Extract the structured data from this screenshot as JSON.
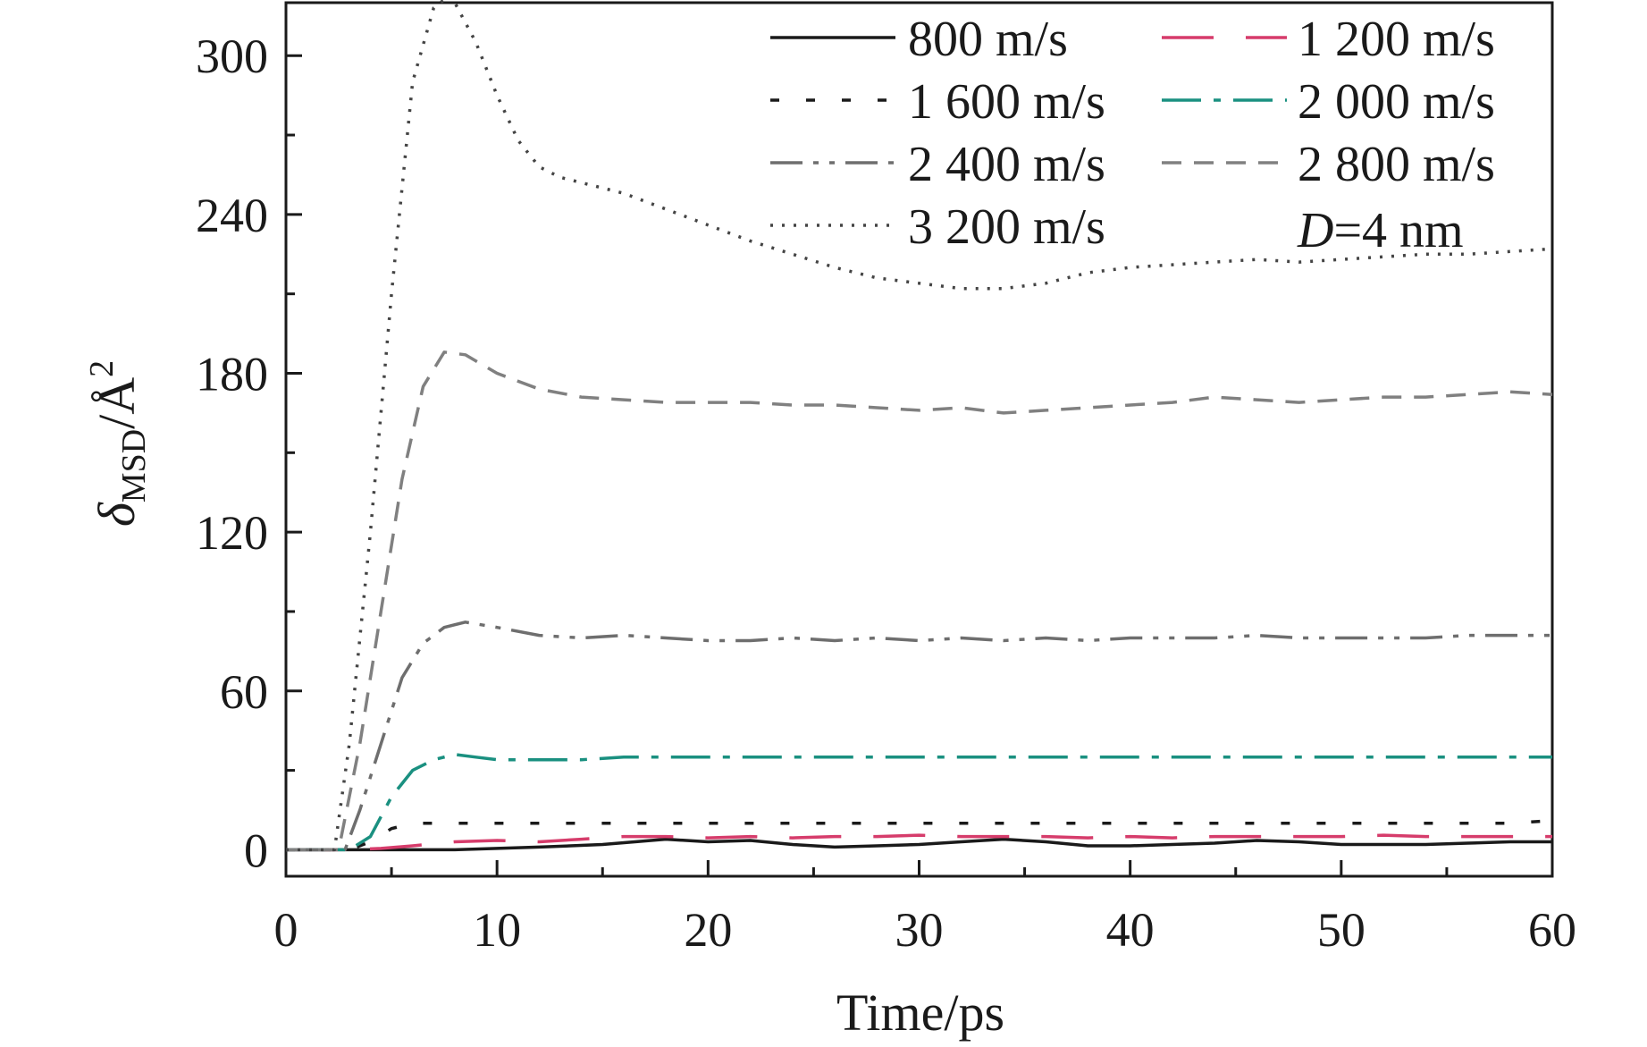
{
  "chart_data": {
    "type": "line",
    "xlabel": "Time/ps",
    "ylabel": {
      "main": "δ",
      "sub": "MSD",
      "unit": "/Å",
      "sup": "2"
    },
    "xlim": [
      0,
      60
    ],
    "ylim": [
      -10,
      320
    ],
    "xticks": [
      0,
      10,
      20,
      30,
      40,
      50,
      60
    ],
    "yticks": [
      0,
      60,
      120,
      180,
      240,
      300
    ],
    "grid": false,
    "legend_position": "top-right",
    "annotation": {
      "italic": "D",
      "rest": "=4 nm"
    },
    "series": [
      {
        "name": "800 m/s",
        "color": "#1a1a1a",
        "dash": "solid",
        "points": [
          [
            0,
            0
          ],
          [
            5,
            0
          ],
          [
            8,
            0
          ],
          [
            10,
            0.5
          ],
          [
            12,
            1
          ],
          [
            15,
            2
          ],
          [
            18,
            4
          ],
          [
            20,
            3
          ],
          [
            22,
            3.5
          ],
          [
            24,
            2
          ],
          [
            26,
            1
          ],
          [
            28,
            1.5
          ],
          [
            30,
            2
          ],
          [
            32,
            3
          ],
          [
            34,
            4
          ],
          [
            36,
            3
          ],
          [
            38,
            1.5
          ],
          [
            40,
            1.5
          ],
          [
            42,
            2
          ],
          [
            44,
            2.5
          ],
          [
            46,
            3.5
          ],
          [
            48,
            3
          ],
          [
            50,
            2
          ],
          [
            52,
            2
          ],
          [
            54,
            2
          ],
          [
            56,
            2.5
          ],
          [
            58,
            3
          ],
          [
            60,
            3
          ]
        ]
      },
      {
        "name": "1 200 m/s",
        "color": "#d63c6b",
        "dash": "long-dash",
        "points": [
          [
            0,
            0
          ],
          [
            3,
            0
          ],
          [
            4.5,
            0.5
          ],
          [
            6,
            1.5
          ],
          [
            8,
            3
          ],
          [
            10,
            3.5
          ],
          [
            12,
            3
          ],
          [
            14,
            4
          ],
          [
            16,
            5
          ],
          [
            18,
            5
          ],
          [
            20,
            4.5
          ],
          [
            22,
            5
          ],
          [
            24,
            4.5
          ],
          [
            26,
            5
          ],
          [
            28,
            5
          ],
          [
            30,
            5.5
          ],
          [
            32,
            5
          ],
          [
            34,
            5
          ],
          [
            36,
            5
          ],
          [
            38,
            4.5
          ],
          [
            40,
            5
          ],
          [
            42,
            4.5
          ],
          [
            44,
            5
          ],
          [
            46,
            5
          ],
          [
            48,
            5
          ],
          [
            50,
            5
          ],
          [
            52,
            5.5
          ],
          [
            54,
            5
          ],
          [
            56,
            5
          ],
          [
            58,
            5
          ],
          [
            60,
            5
          ]
        ]
      },
      {
        "name": "1 600 m/s",
        "color": "#1a1a1a",
        "dash": "short-dash",
        "points": [
          [
            0,
            0
          ],
          [
            3,
            0
          ],
          [
            4,
            3
          ],
          [
            5,
            8
          ],
          [
            6,
            10
          ],
          [
            8,
            10
          ],
          [
            10,
            10
          ],
          [
            15,
            10
          ],
          [
            20,
            10
          ],
          [
            25,
            10
          ],
          [
            30,
            10
          ],
          [
            35,
            10
          ],
          [
            40,
            10
          ],
          [
            45,
            10
          ],
          [
            50,
            10
          ],
          [
            55,
            10
          ],
          [
            58,
            10
          ],
          [
            60,
            11
          ]
        ]
      },
      {
        "name": "2 000 m/s",
        "color": "#1a9080",
        "dash": "dash-dot",
        "points": [
          [
            0,
            0
          ],
          [
            3,
            0
          ],
          [
            4,
            5
          ],
          [
            5,
            20
          ],
          [
            6,
            30
          ],
          [
            7,
            34
          ],
          [
            8,
            36
          ],
          [
            9,
            35
          ],
          [
            10,
            34
          ],
          [
            12,
            34
          ],
          [
            14,
            34
          ],
          [
            16,
            35
          ],
          [
            20,
            35
          ],
          [
            25,
            35
          ],
          [
            30,
            35
          ],
          [
            35,
            35
          ],
          [
            40,
            35
          ],
          [
            45,
            35
          ],
          [
            50,
            35
          ],
          [
            55,
            35
          ],
          [
            60,
            35
          ]
        ]
      },
      {
        "name": "2 400 m/s",
        "color": "#6e6e6e",
        "dash": "dash-dot-dot",
        "points": [
          [
            0,
            0
          ],
          [
            2.8,
            0
          ],
          [
            3.5,
            15
          ],
          [
            4.5,
            40
          ],
          [
            5.5,
            65
          ],
          [
            6.5,
            78
          ],
          [
            7.5,
            84
          ],
          [
            8.5,
            86
          ],
          [
            10,
            84
          ],
          [
            12,
            81
          ],
          [
            14,
            80
          ],
          [
            16,
            81
          ],
          [
            18,
            80
          ],
          [
            20,
            79
          ],
          [
            22,
            79
          ],
          [
            24,
            80
          ],
          [
            26,
            79
          ],
          [
            28,
            80
          ],
          [
            30,
            79
          ],
          [
            32,
            80
          ],
          [
            34,
            79
          ],
          [
            36,
            80
          ],
          [
            38,
            79
          ],
          [
            40,
            80
          ],
          [
            42,
            80
          ],
          [
            44,
            80
          ],
          [
            46,
            81
          ],
          [
            48,
            80
          ],
          [
            50,
            80
          ],
          [
            52,
            80
          ],
          [
            54,
            80
          ],
          [
            56,
            81
          ],
          [
            58,
            81
          ],
          [
            60,
            81
          ]
        ]
      },
      {
        "name": "2 800 m/s",
        "color": "#808080",
        "dash": "medium-dash",
        "points": [
          [
            0,
            0
          ],
          [
            2.5,
            0
          ],
          [
            3.5,
            40
          ],
          [
            4.5,
            90
          ],
          [
            5.5,
            140
          ],
          [
            6.5,
            175
          ],
          [
            7.5,
            188
          ],
          [
            8.5,
            187
          ],
          [
            10,
            180
          ],
          [
            12,
            174
          ],
          [
            14,
            171
          ],
          [
            16,
            170
          ],
          [
            18,
            169
          ],
          [
            20,
            169
          ],
          [
            22,
            169
          ],
          [
            24,
            168
          ],
          [
            26,
            168
          ],
          [
            28,
            167
          ],
          [
            30,
            166
          ],
          [
            32,
            167
          ],
          [
            34,
            165
          ],
          [
            36,
            166
          ],
          [
            38,
            167
          ],
          [
            40,
            168
          ],
          [
            42,
            169
          ],
          [
            44,
            171
          ],
          [
            46,
            170
          ],
          [
            48,
            169
          ],
          [
            50,
            170
          ],
          [
            52,
            171
          ],
          [
            54,
            171
          ],
          [
            56,
            172
          ],
          [
            58,
            173
          ],
          [
            60,
            172
          ]
        ]
      },
      {
        "name": "3 200 m/s",
        "color": "#444444",
        "dash": "dotted",
        "points": [
          [
            0,
            0
          ],
          [
            2.3,
            0
          ],
          [
            3,
            40
          ],
          [
            4,
            120
          ],
          [
            5,
            210
          ],
          [
            6,
            290
          ],
          [
            7,
            318
          ],
          [
            7.8,
            323
          ],
          [
            9,
            305
          ],
          [
            10,
            285
          ],
          [
            11,
            268
          ],
          [
            12,
            258
          ],
          [
            13,
            254
          ],
          [
            14,
            252
          ],
          [
            16,
            248
          ],
          [
            18,
            242
          ],
          [
            20,
            236
          ],
          [
            22,
            230
          ],
          [
            24,
            225
          ],
          [
            26,
            220
          ],
          [
            28,
            216
          ],
          [
            30,
            214
          ],
          [
            32,
            212
          ],
          [
            34,
            212
          ],
          [
            36,
            214
          ],
          [
            38,
            218
          ],
          [
            40,
            220
          ],
          [
            42,
            221
          ],
          [
            44,
            222
          ],
          [
            46,
            223
          ],
          [
            48,
            222
          ],
          [
            50,
            223
          ],
          [
            52,
            224
          ],
          [
            54,
            225
          ],
          [
            56,
            225
          ],
          [
            58,
            226
          ],
          [
            60,
            227
          ]
        ]
      }
    ]
  }
}
